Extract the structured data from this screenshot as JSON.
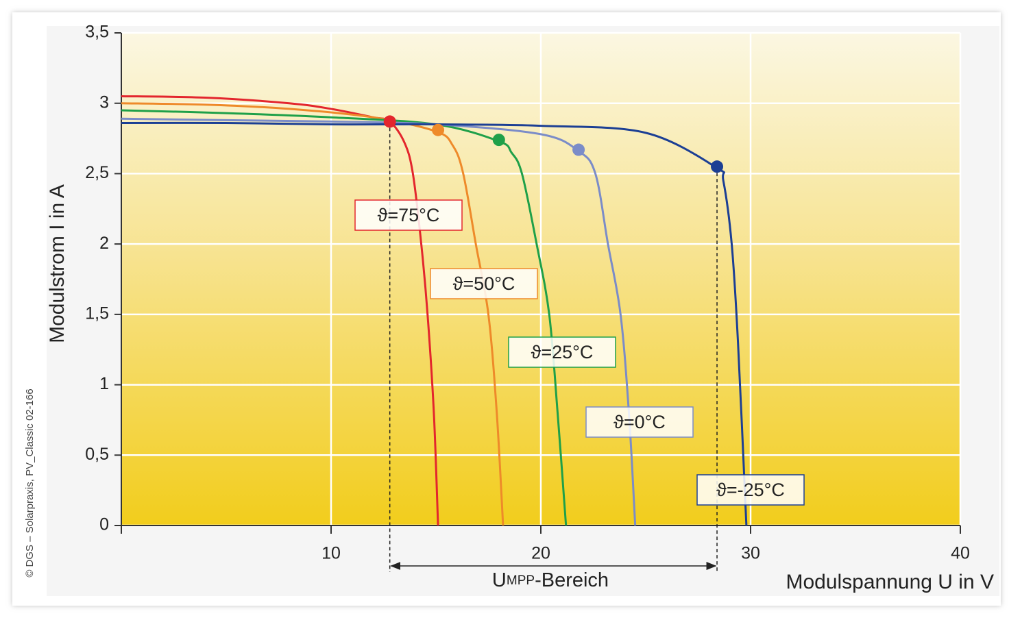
{
  "chart_data": {
    "type": "line",
    "y_label": "Modulstrom I in A",
    "x_label": "Modulspannung U in V",
    "credit": "© DGS – Solarpraxis, PV_Classic 02-166",
    "range_label": [
      "U",
      "MPP",
      "-Bereich"
    ],
    "xlim": [
      0,
      40
    ],
    "ylim": [
      0,
      3.5
    ],
    "xticks": [
      10,
      20,
      30,
      40
    ],
    "yticks": [
      0,
      {
        "value": 0.5,
        "label": "0,5"
      },
      1,
      {
        "value": 1.5,
        "label": "1,5"
      },
      2,
      {
        "value": 2.5,
        "label": "2,5"
      },
      3,
      {
        "value": 3.5,
        "label": "3,5"
      }
    ],
    "grid": true,
    "series": [
      {
        "name": "ϑ=75°C",
        "color": "#e3262d",
        "x": [
          0,
          4,
          8,
          10,
          12,
          12.8,
          13.5,
          13.9,
          14.3,
          14.6,
          14.9,
          15.1
        ],
        "values": [
          3.05,
          3.04,
          3.0,
          2.96,
          2.9,
          2.87,
          2.72,
          2.5,
          2.0,
          1.5,
          0.8,
          0
        ],
        "mpp_x": 12.8,
        "mpp_y": 2.87
      },
      {
        "name": "ϑ=50°C",
        "color": "#ee8a2a",
        "x": [
          0,
          4,
          8,
          12,
          15,
          15.8,
          16.3,
          16.9,
          17.5,
          17.9,
          18.2
        ],
        "values": [
          3.0,
          2.99,
          2.96,
          2.9,
          2.8,
          2.7,
          2.5,
          2.0,
          1.5,
          0.8,
          0
        ],
        "mpp_x": 15.1,
        "mpp_y": 2.81
      },
      {
        "name": "ϑ=25°C",
        "color": "#1fa049",
        "x": [
          0,
          5,
          10,
          15,
          18,
          18.6,
          19.1,
          19.8,
          20.4,
          20.8,
          21.2
        ],
        "values": [
          2.95,
          2.93,
          2.9,
          2.85,
          2.73,
          2.65,
          2.5,
          2.0,
          1.5,
          0.8,
          0
        ],
        "mpp_x": 18.0,
        "mpp_y": 2.74
      },
      {
        "name": "ϑ=0°C",
        "color": "#7b8cc8",
        "x": [
          0,
          5,
          10,
          15,
          20,
          21.8,
          22.6,
          23.2,
          23.8,
          24.2,
          24.5
        ],
        "values": [
          2.89,
          2.88,
          2.87,
          2.85,
          2.78,
          2.66,
          2.5,
          2.0,
          1.5,
          0.8,
          0
        ],
        "mpp_x": 21.8,
        "mpp_y": 2.67
      },
      {
        "name": "ϑ=-25°C",
        "color": "#1c3f94",
        "x": [
          0,
          5,
          10,
          15,
          20,
          25,
          28.4,
          28.7,
          29.1,
          29.4,
          29.8
        ],
        "values": [
          2.86,
          2.86,
          2.85,
          2.85,
          2.84,
          2.79,
          2.54,
          2.45,
          2.0,
          1.3,
          0
        ],
        "mpp_x": 28.4,
        "mpp_y": 2.55
      }
    ]
  }
}
